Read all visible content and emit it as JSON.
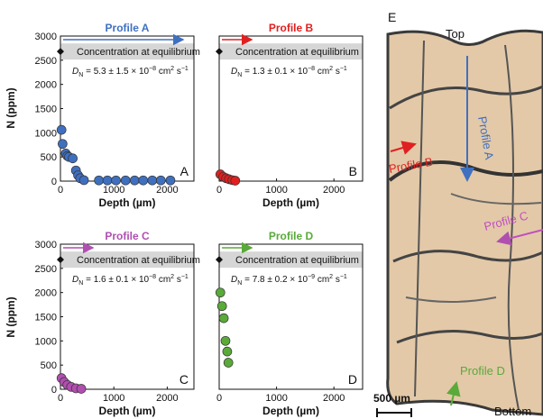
{
  "figure": {
    "y_axis_label": "N (ppm)",
    "x_axis_label": "Depth (µm)",
    "equilibrium_label": "Concentration at equilibrium"
  },
  "chart_data": [
    {
      "type": "scatter",
      "panel_letter": "A",
      "title": "Profile A",
      "color": "#3f70c0",
      "equilibrium": 2680,
      "diffusivity_main": "5.3 ± 1.5 × 10",
      "diffusivity_exp": "−8",
      "diffusivity_units": " cm",
      "xlabel": "Depth (µm)",
      "ylabel": "N (ppm)",
      "xlim": [
        0,
        2500
      ],
      "ylim": [
        0,
        3000
      ],
      "x_ticks": [
        0,
        1000,
        2000
      ],
      "y_ticks": [
        0,
        500,
        1000,
        1500,
        2000,
        2500,
        3000
      ],
      "x": [
        20,
        40,
        100,
        130,
        160,
        230,
        290,
        330,
        370,
        440,
        720,
        880,
        1040,
        1220,
        1390,
        1550,
        1720,
        1880,
        2060
      ],
      "y": [
        1060,
        770,
        570,
        520,
        500,
        470,
        220,
        120,
        60,
        20,
        15,
        15,
        15,
        15,
        15,
        15,
        15,
        15,
        15
      ]
    },
    {
      "type": "scatter",
      "panel_letter": "B",
      "title": "Profile B",
      "color": "#e02020",
      "equilibrium": 2680,
      "diffusivity_main": "1.3 ± 0.1 × 10",
      "diffusivity_exp": "−8",
      "diffusivity_units": " cm",
      "xlabel": "Depth (µm)",
      "ylabel": "",
      "xlim": [
        0,
        2500
      ],
      "ylim": [
        0,
        3000
      ],
      "x_ticks": [
        0,
        1000,
        2000
      ],
      "y_ticks": [],
      "x": [
        20,
        70,
        120,
        170,
        230,
        280
      ],
      "y": [
        140,
        90,
        60,
        40,
        20,
        10
      ]
    },
    {
      "type": "scatter",
      "panel_letter": "C",
      "title": "Profile C",
      "color": "#b04fb0",
      "equilibrium": 2680,
      "diffusivity_main": "1.6 ± 0.1 × 10",
      "diffusivity_exp": "−8",
      "diffusivity_units": " cm",
      "xlabel": "Depth (µm)",
      "ylabel": "N (ppm)",
      "xlim": [
        0,
        2500
      ],
      "ylim": [
        0,
        3000
      ],
      "x_ticks": [
        0,
        1000,
        2000
      ],
      "y_ticks": [
        0,
        500,
        1000,
        1500,
        2000,
        2500,
        3000
      ],
      "x": [
        20,
        70,
        130,
        200,
        290,
        390
      ],
      "y": [
        230,
        150,
        90,
        50,
        20,
        10
      ]
    },
    {
      "type": "scatter",
      "panel_letter": "D",
      "title": "Profile D",
      "color": "#5aaa3a",
      "equilibrium": 2680,
      "diffusivity_main": "7.8 ± 0.2 × 10",
      "diffusivity_exp": "−9",
      "diffusivity_units": " cm",
      "xlabel": "Depth (µm)",
      "ylabel": "",
      "xlim": [
        0,
        2500
      ],
      "ylim": [
        0,
        3000
      ],
      "x_ticks": [
        0,
        1000,
        2000
      ],
      "y_ticks": [],
      "x": [
        20,
        50,
        80,
        110,
        140,
        160
      ],
      "y": [
        2000,
        1720,
        1470,
        1000,
        780,
        550
      ]
    }
  ],
  "micrograph": {
    "panel_letter": "E",
    "top_label": "Top",
    "bottom_label": "Bottom",
    "scale_label": "500 µm",
    "profiles": [
      {
        "label": "Profile A",
        "color": "#3f70c0"
      },
      {
        "label": "Profile B",
        "color": "#e02020"
      },
      {
        "label": "Profile C",
        "color": "#c050c0"
      },
      {
        "label": "Profile D",
        "color": "#5aaa3a"
      }
    ]
  }
}
